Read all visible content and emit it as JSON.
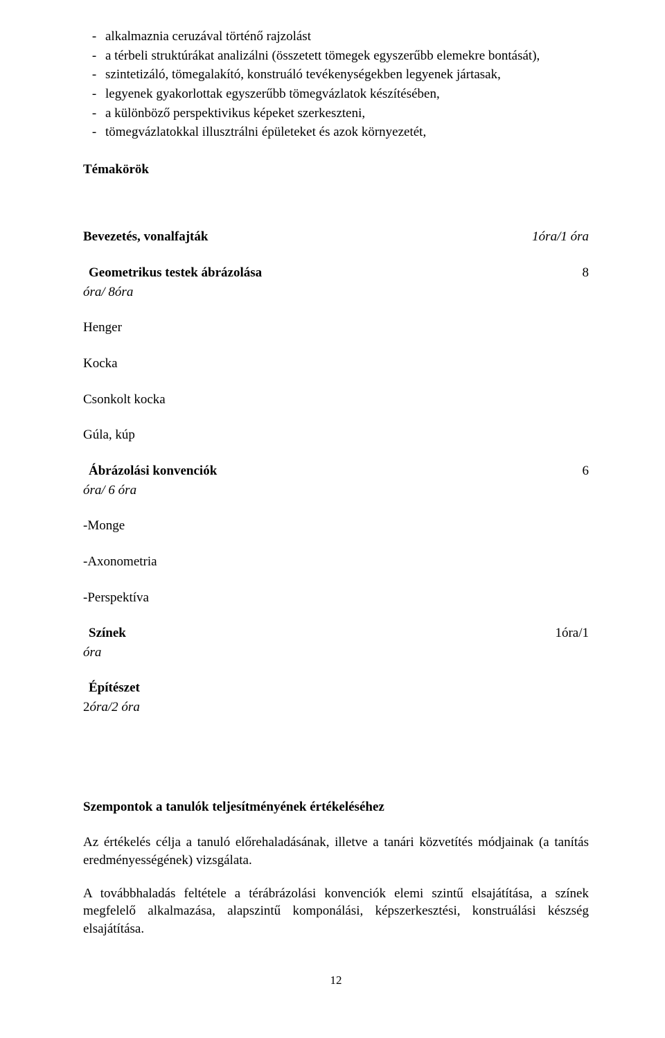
{
  "bullets": [
    "alkalmaznia ceruzával történő rajzolást",
    "a térbeli struktúrákat analizálni (összetett tömegek egyszerűbb elemekre bontását),",
    "szintetizáló, tömegalakító, konstruáló tevékenységekben legyenek jártasak,",
    "legyenek gyakorlottak egyszerűbb tömegvázlatok készítésében,",
    "a különböző perspektivikus képeket szerkeszteni,",
    "tömegvázlatokkal illusztrálni épületeket és azok környezetét,"
  ],
  "témakörök_title": "Témakörök",
  "bevezetés": {
    "label": "Bevezetés, vonalfajták",
    "hours": "1óra/1 óra"
  },
  "geometrikus": {
    "label": "Geometrikus testek ábrázolása",
    "num": "8",
    "sub": "óra/ 8óra"
  },
  "solids": [
    "Henger",
    "Kocka",
    "Csonkolt kocka",
    "Gúla, kúp"
  ],
  "ábrázolási": {
    "label": "Ábrázolási konvenciók",
    "num": "6",
    "sub": "óra/ 6 óra"
  },
  "projections": [
    "-Monge",
    "-Axonometria",
    "-Perspektíva"
  ],
  "színek": {
    "label": "Színek",
    "hours": "1óra/1",
    "sub": "óra"
  },
  "építészet": {
    "label": "Építészet",
    "sub_prefix": "2",
    "sub_rest": "óra/2 óra"
  },
  "szempontok_title": "Szempontok a tanulók teljesítményének értékeléséhez",
  "para1": "Az értékelés célja a tanuló előrehaladásának, illetve a tanári közvetítés módjainak (a tanítás eredményességének) vizsgálata.",
  "para2": "A továbbhaladás feltétele a térábrázolási konvenciók elemi szintű elsajátítása, a színek megfelelő alkalmazása, alapszintű komponálási, képszerkesztési, konstruálási készség elsajátítása.",
  "page_number": "12"
}
